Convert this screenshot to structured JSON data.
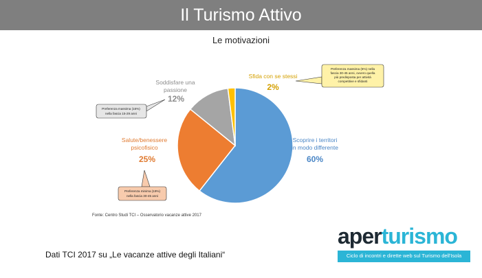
{
  "header": {
    "title": "Il Turismo Attivo"
  },
  "chart_data": {
    "type": "pie",
    "title": "Le motivazioni",
    "slices": [
      {
        "label_line1": "Scoprire i territori",
        "label_line2": "in modo differente",
        "value": 60,
        "value_text": "60%",
        "color": "#5b9bd5"
      },
      {
        "label_line1": "Salute/benessere",
        "label_line2": "psicofisico",
        "value": 25,
        "value_text": "25%",
        "color": "#ed7d31"
      },
      {
        "label_line1": "Soddisfare una",
        "label_line2": "passione",
        "value": 12,
        "value_text": "12%",
        "color": "#a5a5a5"
      },
      {
        "label_line1": "Sfida con se stessi",
        "label_line2": "",
        "value": 2,
        "value_text": "2%",
        "color": "#ffc000"
      }
    ],
    "callouts": {
      "sfida": [
        "Preferenza massima (6%) nella",
        "fascia 30-45 anni, ovvero quella",
        "più predisposta per attività",
        "competitive e sfidanti"
      ],
      "passione": [
        "Preferenza massima (16%)",
        "nella fascia 15-29 anni"
      ],
      "salute": [
        "Preferenza minima (19%)",
        "nella fascia 30-45 anni"
      ]
    },
    "source": "Fonte: Centro Studi TCI – Osservatorio vacanze attive 2017"
  },
  "footer": {
    "caption": "Dati TCI 2017 su „Le vacanze attive degli Italiani“",
    "logo_part1": "aper",
    "logo_part2": "turismo",
    "logo_tagline": "Ciclo di incontri e dirette web sul Turismo dell'Isola"
  }
}
